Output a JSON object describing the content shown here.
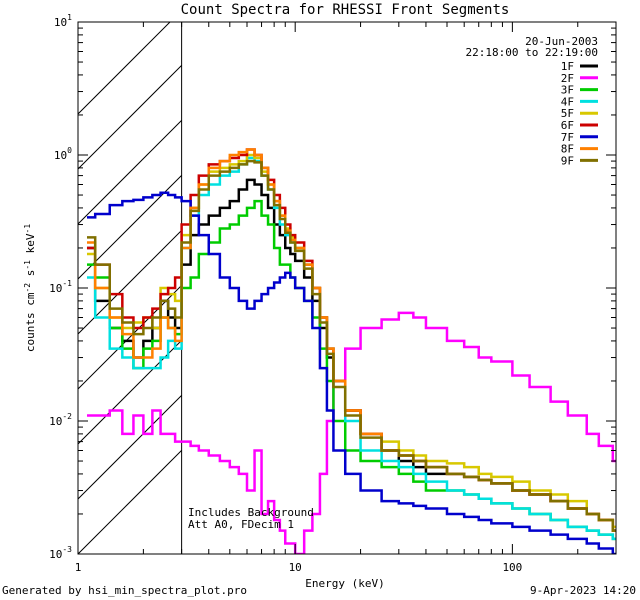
{
  "chart_data": {
    "type": "line",
    "title": "Count Spectra for RHESSI Front Segments",
    "xlabel": "Energy (keV)",
    "ylabel": "counts cm^-2 s^-1 keV^-1",
    "x_scale": "log",
    "y_scale": "log",
    "xlim": [
      1,
      300
    ],
    "ylim": [
      0.001,
      10
    ],
    "x_ticks": [
      {
        "value": 1,
        "label": "1"
      },
      {
        "value": 10,
        "label": "10"
      },
      {
        "value": 100,
        "label": "100"
      }
    ],
    "y_ticks": [
      {
        "value": 0.001,
        "base": "10",
        "exp": "-3"
      },
      {
        "value": 0.01,
        "base": "10",
        "exp": "-2"
      },
      {
        "value": 0.1,
        "base": "10",
        "exp": "-1"
      },
      {
        "value": 1,
        "base": "10",
        "exp": "0"
      },
      {
        "value": 10,
        "base": "10",
        "exp": "1"
      }
    ],
    "ylabel_parts": {
      "a": "counts cm",
      "b": "-2",
      "c": " s",
      "d": "-1",
      "e": " keV",
      "f": "-1"
    },
    "hatched_region_keV": [
      1,
      3
    ],
    "info_lines": [
      "20-Jun-2003",
      "22:18:00 to 22:19:00"
    ],
    "annotations": [
      "Includes Background",
      "Att A0, FDecim 1"
    ],
    "footer_left": "Generated by hsi_min_spectra_plot.pro",
    "footer_right": "9-Apr-2023 14:20",
    "x": [
      1.1,
      1.2,
      1.4,
      1.6,
      1.8,
      2.0,
      2.2,
      2.4,
      2.6,
      2.8,
      3.0,
      3.3,
      3.6,
      4.0,
      4.5,
      5.0,
      5.5,
      6.0,
      6.5,
      7.0,
      7.5,
      8.0,
      8.5,
      9.0,
      9.5,
      10.0,
      11.0,
      12.0,
      13.0,
      14.0,
      15.0,
      17.0,
      20.0,
      25.0,
      30.0,
      35.0,
      40.0,
      50.0,
      60.0,
      70.0,
      80.0,
      100.0,
      120.0,
      150.0,
      180.0,
      220.0,
      250.0,
      290.0
    ],
    "series": [
      {
        "name": "1F",
        "color": "#000000",
        "values": [
          0.2,
          0.08,
          0.05,
          0.04,
          0.03,
          0.04,
          0.05,
          0.08,
          0.06,
          0.05,
          0.15,
          0.25,
          0.3,
          0.35,
          0.4,
          0.45,
          0.55,
          0.65,
          0.6,
          0.5,
          0.4,
          0.3,
          0.25,
          0.2,
          0.18,
          0.16,
          0.12,
          0.08,
          0.05,
          0.03,
          0.02,
          0.012,
          0.008,
          0.006,
          0.005,
          0.0045,
          0.004,
          0.004,
          0.0038,
          0.0036,
          0.0034,
          0.003,
          0.0028,
          0.0025,
          0.0022,
          0.002,
          0.0018,
          0.0015
        ]
      },
      {
        "name": "2F",
        "color": "#ff00ff",
        "values": [
          0.011,
          0.011,
          0.012,
          0.008,
          0.011,
          0.008,
          0.012,
          0.008,
          0.008,
          0.007,
          0.007,
          0.0065,
          0.006,
          0.0055,
          0.005,
          0.0045,
          0.004,
          0.003,
          0.006,
          0.002,
          0.0025,
          0.0018,
          0.0015,
          0.0012,
          0.0012,
          0.001,
          0.0015,
          0.002,
          0.004,
          0.01,
          0.02,
          0.035,
          0.05,
          0.058,
          0.065,
          0.06,
          0.05,
          0.04,
          0.036,
          0.03,
          0.028,
          0.022,
          0.018,
          0.014,
          0.011,
          0.008,
          0.0065,
          0.005
        ]
      },
      {
        "name": "3F",
        "color": "#00cc00",
        "values": [
          0.15,
          0.12,
          0.05,
          0.035,
          0.025,
          0.035,
          0.04,
          0.06,
          0.05,
          0.045,
          0.1,
          0.12,
          0.18,
          0.22,
          0.28,
          0.3,
          0.35,
          0.4,
          0.45,
          0.35,
          0.3,
          0.2,
          0.15,
          0.15,
          0.12,
          0.1,
          0.08,
          0.06,
          0.035,
          0.02,
          0.01,
          0.006,
          0.005,
          0.0045,
          0.004,
          0.0035,
          0.003,
          0.003,
          0.0028,
          0.0026,
          0.0024,
          0.0022,
          0.002,
          0.0018,
          0.0016,
          0.0015,
          0.0014,
          0.0013
        ]
      },
      {
        "name": "4F",
        "color": "#00e0e0",
        "values": [
          0.12,
          0.06,
          0.035,
          0.03,
          0.025,
          0.025,
          0.025,
          0.03,
          0.04,
          0.035,
          0.2,
          0.35,
          0.5,
          0.6,
          0.7,
          0.75,
          0.85,
          0.95,
          0.9,
          0.7,
          0.55,
          0.4,
          0.3,
          0.25,
          0.22,
          0.2,
          0.15,
          0.1,
          0.06,
          0.035,
          0.02,
          0.01,
          0.006,
          0.005,
          0.0045,
          0.004,
          0.0035,
          0.003,
          0.0028,
          0.0026,
          0.0024,
          0.0022,
          0.002,
          0.0018,
          0.0016,
          0.0015,
          0.0014,
          0.0013
        ]
      },
      {
        "name": "5F",
        "color": "#d8c800",
        "values": [
          0.18,
          0.1,
          0.06,
          0.05,
          0.055,
          0.06,
          0.05,
          0.1,
          0.09,
          0.08,
          0.25,
          0.4,
          0.6,
          0.75,
          0.8,
          0.85,
          0.9,
          1.0,
          0.95,
          0.75,
          0.6,
          0.45,
          0.35,
          0.28,
          0.24,
          0.2,
          0.15,
          0.1,
          0.06,
          0.035,
          0.02,
          0.012,
          0.008,
          0.007,
          0.006,
          0.0055,
          0.005,
          0.0048,
          0.0045,
          0.004,
          0.0038,
          0.0035,
          0.003,
          0.0028,
          0.0025,
          0.002,
          0.0018,
          0.0016
        ]
      },
      {
        "name": "6F",
        "color": "#cc0000",
        "values": [
          0.2,
          0.15,
          0.09,
          0.06,
          0.05,
          0.06,
          0.07,
          0.09,
          0.1,
          0.12,
          0.3,
          0.5,
          0.7,
          0.85,
          0.9,
          0.95,
          1.0,
          1.1,
          1.0,
          0.8,
          0.65,
          0.5,
          0.4,
          0.3,
          0.25,
          0.22,
          0.16,
          0.1,
          0.06,
          0.035,
          0.02,
          0.012,
          0.008,
          0.006,
          0.0055,
          0.005,
          0.0045,
          0.004,
          0.0038,
          0.0036,
          0.0034,
          0.003,
          0.0028,
          0.0025,
          0.0022,
          0.002,
          0.0018,
          0.0015
        ]
      },
      {
        "name": "7F",
        "color": "#0000cc",
        "values": [
          0.34,
          0.36,
          0.42,
          0.45,
          0.46,
          0.48,
          0.5,
          0.52,
          0.5,
          0.48,
          0.45,
          0.35,
          0.25,
          0.18,
          0.12,
          0.1,
          0.08,
          0.07,
          0.08,
          0.09,
          0.1,
          0.11,
          0.12,
          0.13,
          0.12,
          0.1,
          0.08,
          0.05,
          0.025,
          0.012,
          0.006,
          0.004,
          0.003,
          0.0025,
          0.0024,
          0.0023,
          0.0022,
          0.002,
          0.0019,
          0.0018,
          0.0017,
          0.0016,
          0.0015,
          0.0014,
          0.0013,
          0.0012,
          0.0011,
          0.001
        ]
      },
      {
        "name": "8F",
        "color": "#ff8000",
        "values": [
          0.22,
          0.1,
          0.06,
          0.045,
          0.03,
          0.03,
          0.035,
          0.06,
          0.05,
          0.04,
          0.2,
          0.4,
          0.6,
          0.8,
          0.9,
          1.0,
          1.05,
          1.1,
          1.0,
          0.8,
          0.6,
          0.45,
          0.35,
          0.27,
          0.23,
          0.2,
          0.15,
          0.1,
          0.06,
          0.035,
          0.02,
          0.012,
          0.008,
          0.006,
          0.0055,
          0.005,
          0.0045,
          0.004,
          0.0038,
          0.0036,
          0.0034,
          0.003,
          0.0028,
          0.0025,
          0.0022,
          0.002,
          0.0018,
          0.0015
        ]
      },
      {
        "name": "9F",
        "color": "#807000",
        "values": [
          0.24,
          0.15,
          0.07,
          0.055,
          0.045,
          0.05,
          0.06,
          0.08,
          0.07,
          0.06,
          0.22,
          0.38,
          0.55,
          0.7,
          0.75,
          0.8,
          0.85,
          0.9,
          0.88,
          0.7,
          0.55,
          0.42,
          0.33,
          0.26,
          0.22,
          0.19,
          0.14,
          0.09,
          0.055,
          0.032,
          0.018,
          0.011,
          0.0075,
          0.006,
          0.0055,
          0.005,
          0.0045,
          0.004,
          0.0038,
          0.0036,
          0.0034,
          0.003,
          0.0028,
          0.0025,
          0.0022,
          0.002,
          0.0018,
          0.0015
        ]
      }
    ]
  }
}
